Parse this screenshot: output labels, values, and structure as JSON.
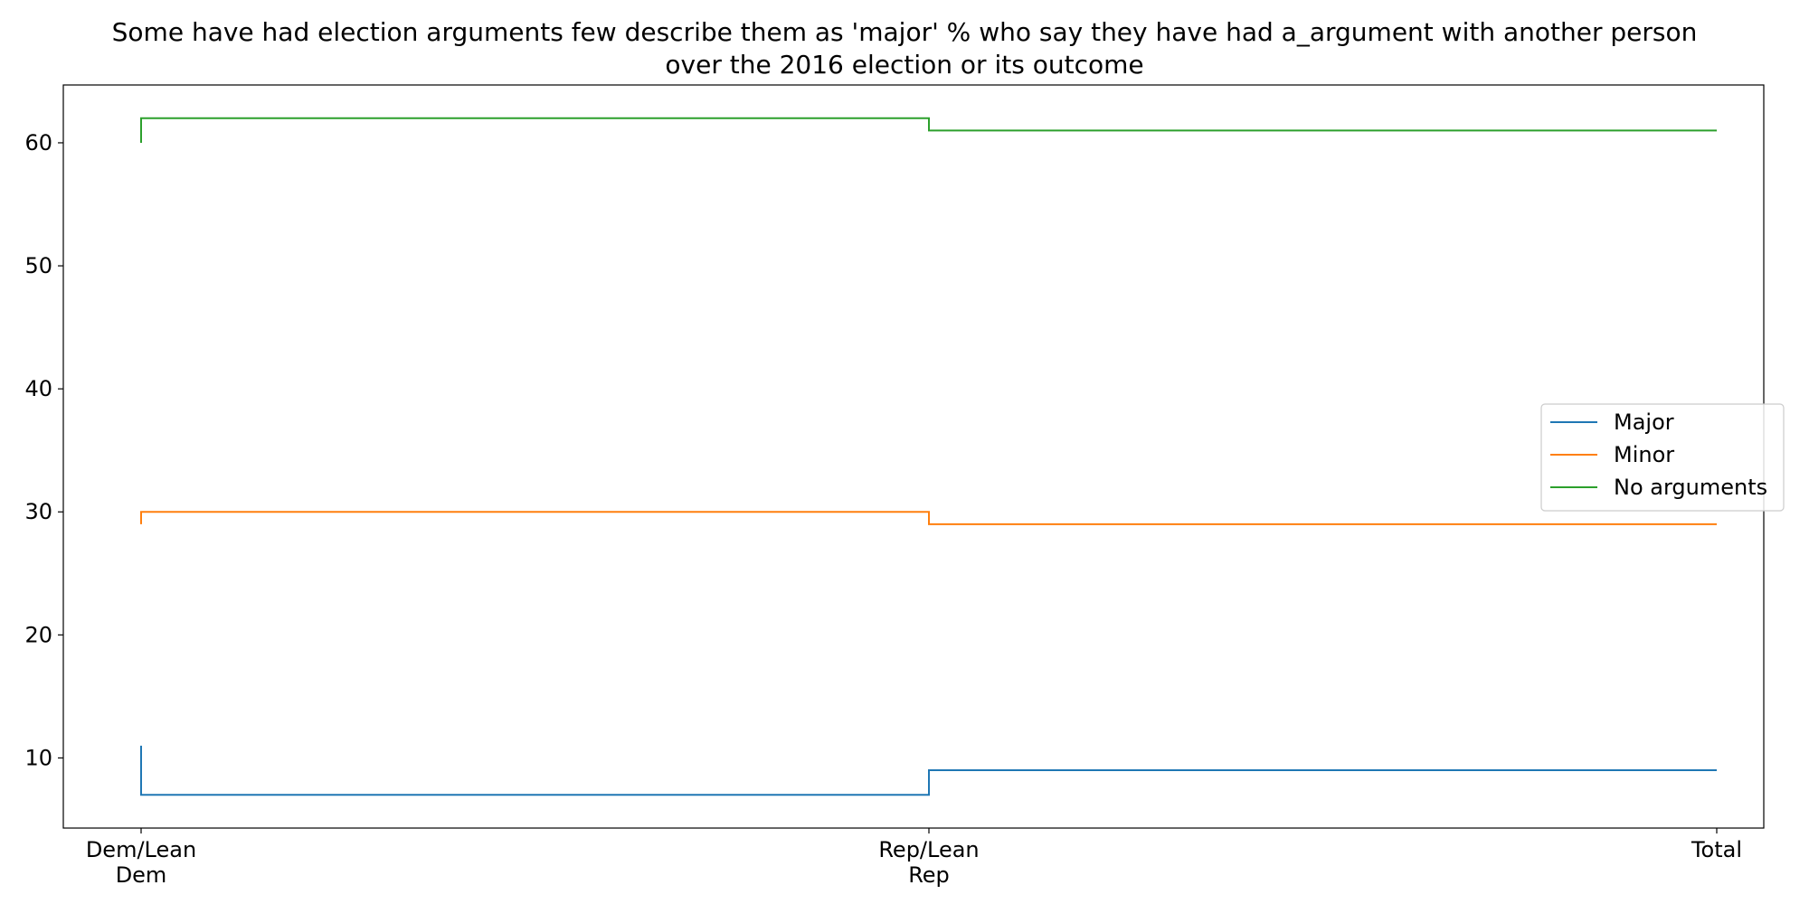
{
  "chart_data": {
    "type": "line",
    "title_lines": [
      "Some have had election arguments few describe them as 'major' % who say they have had a_argument with another person",
      "over the 2016 election or its outcome"
    ],
    "categories": [
      [
        "Dem/Lean",
        "Dem"
      ],
      [
        "Rep/Lean",
        "Rep"
      ],
      [
        "Total"
      ]
    ],
    "step": "post",
    "ylim": [
      4.3,
      64.7
    ],
    "yticks": [
      10,
      20,
      30,
      40,
      50,
      60
    ],
    "grid": false,
    "legend_position": "center-right",
    "series": [
      {
        "name": "Major",
        "color": "#1f77b4",
        "values": [
          7,
          9,
          9
        ],
        "first_point": 11
      },
      {
        "name": "Minor",
        "color": "#ff7f0e",
        "values": [
          30,
          29,
          29
        ],
        "first_point": 29
      },
      {
        "name": "No arguments",
        "color": "#2ca02c",
        "values": [
          62,
          61,
          61
        ],
        "first_point": 60
      }
    ]
  }
}
